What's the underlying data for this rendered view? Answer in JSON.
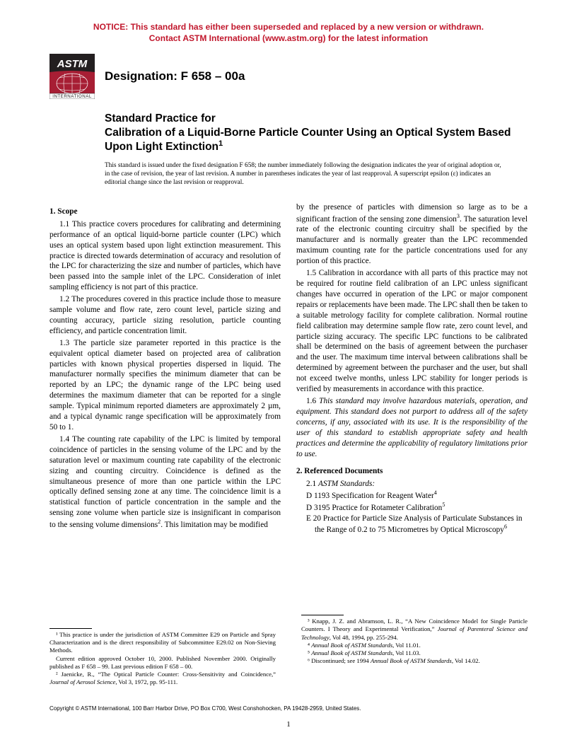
{
  "notice": {
    "color": "#c1172c",
    "line1": "NOTICE: This standard has either been superseded and replaced by a new version or withdrawn.",
    "line2": "Contact ASTM International (www.astm.org) for the latest information"
  },
  "logo": {
    "top_fill": "#231f20",
    "globe_fill": "#a71e34",
    "band_text": "INTERNATIONAL",
    "band_fill": "#ffffff"
  },
  "designation": "Designation: F 658 – 00a",
  "title": {
    "prefix": "Standard Practice for",
    "main": "Calibration of a Liquid-Borne Particle Counter Using an Optical System Based Upon Light Extinction",
    "sup": "1"
  },
  "fixed_note": "This standard is issued under the fixed designation F 658; the number immediately following the designation indicates the year of original adoption or, in the case of revision, the year of last revision. A number in parentheses indicates the year of last reapproval. A superscript epsilon (ε) indicates an editorial change since the last revision or reapproval.",
  "sections": {
    "scope_heading": "1. Scope",
    "p11": "1.1 This practice covers procedures for calibrating and determining performance of an optical liquid-borne particle counter (LPC) which uses an optical system based upon light extinction measurement. This practice is directed towards determination of accuracy and resolution of the LPC for characterizing the size and number of particles, which have been passed into the sample inlet of the LPC. Consideration of inlet sampling efficiency is not part of this practice.",
    "p12": "1.2 The procedures covered in this practice include those to measure sample volume and flow rate, zero count level, particle sizing and counting accuracy, particle sizing resolution, particle counting efficiency, and particle concentration limit.",
    "p13": "1.3 The particle size parameter reported in this practice is the equivalent optical diameter based on projected area of calibration particles with known physical properties dispersed in liquid. The manufacturer normally specifies the minimum diameter that can be reported by an LPC; the dynamic range of the LPC being used determines the maximum diameter that can be reported for a single sample. Typical minimum reported diameters are approximately 2 µm, and a typical dynamic range specification will be approximately from 50 to 1.",
    "p14a": "1.4 The counting rate capability of the LPC is limited by temporal coincidence of particles in the sensing volume of the LPC and by the saturation level or maximum counting rate capability of the electronic sizing and counting circuitry. Coincidence is defined as the simultaneous presence of more than one particle within the LPC optically defined sensing zone at any time. The coincidence limit is a statistical function of particle concentration in the sample and the sensing zone volume when particle size is insignificant in comparison to the sensing volume dimensions",
    "p14a_sup": "2",
    "p14a_tail": ". This limitation may be modified",
    "p14b_lead": "by the presence of particles with dimension so large as to be a significant fraction of the sensing zone dimension",
    "p14b_sup": "3",
    "p14b": ". The saturation level rate of the electronic counting circuitry shall be specified by the manufacturer and is normally greater than the LPC recommended maximum counting rate for the particle concentrations used for any portion of this practice.",
    "p15": "1.5 Calibration in accordance with all parts of this practice may not be required for routine field calibration of an LPC unless significant changes have occurred in operation of the LPC or major component repairs or replacements have been made. The LPC shall then be taken to a suitable metrology facility for complete calibration. Normal routine field calibration may determine sample flow rate, zero count level, and particle sizing accuracy. The specific LPC functions to be calibrated shall be determined on the basis of agreement between the purchaser and the user. The maximum time interval between calibrations shall be determined by agreement between the purchaser and the user, but shall not exceed twelve months, unless LPC stability for longer periods is verified by measurements in accordance with this practice.",
    "p16": "1.6 This standard may involve hazardous materials, operation, and equipment. This standard does not purport to address all of the safety concerns, if any, associated with its use. It is the responsibility of the user of this standard to establish appropriate safety and health practices and determine the applicability of regulatory limitations prior to use.",
    "refs_heading": "2. Referenced Documents",
    "refs_sub": "2.1 ",
    "refs_sub_em": "ASTM Standards:",
    "ref_d1193": "D 1193  Specification for Reagent Water",
    "ref_d1193_sup": "4",
    "ref_d3195": "D 3195  Practice for Rotameter Calibration",
    "ref_d3195_sup": "5",
    "ref_e20": "E 20  Practice for Particle Size Analysis of Particulate Substances in the Range of 0.2 to 75 Micrometres by Optical Microscopy",
    "ref_e20_sup": "6"
  },
  "footnotes_left": {
    "f1": "¹ This practice is under the jurisdiction of ASTM Committee E29 on Particle and Spray Characterization and is the direct responsibility of Subcommittee E29.02 on Non-Sieving Methods.",
    "f1b": "Current edition approved October 10, 2000. Published November 2000. Originally published as F 658 – 99. Last previous edition F 658 – 00.",
    "f2": "² Jaenicke, R., “The Optical Particle Counter: Cross-Sensitivity and Coincidence,” Journal of Aerosol Science, Vol 3, 1972, pp. 95-111."
  },
  "footnotes_right": {
    "f3": "³ Knapp, J. Z. and Abramson, L. R., “A New Coincidence Model for Single Particle Counters. I Theory and Experimental Verification,” Journal of Parenteral Science and Technology, Vol 48, 1994, pp. 255-294.",
    "f4": "⁴ Annual Book of ASTM Standards, Vol 11.01.",
    "f5": "⁵ Annual Book of ASTM Standards, Vol 11.03.",
    "f6": "⁶ Discontinued; see 1994 Annual Book of ASTM Standards, Vol 14.02."
  },
  "copyright": "Copyright © ASTM International, 100 Barr Harbor Drive, PO Box C700, West Conshohocken, PA 19428-2959, United States.",
  "page_number": "1"
}
